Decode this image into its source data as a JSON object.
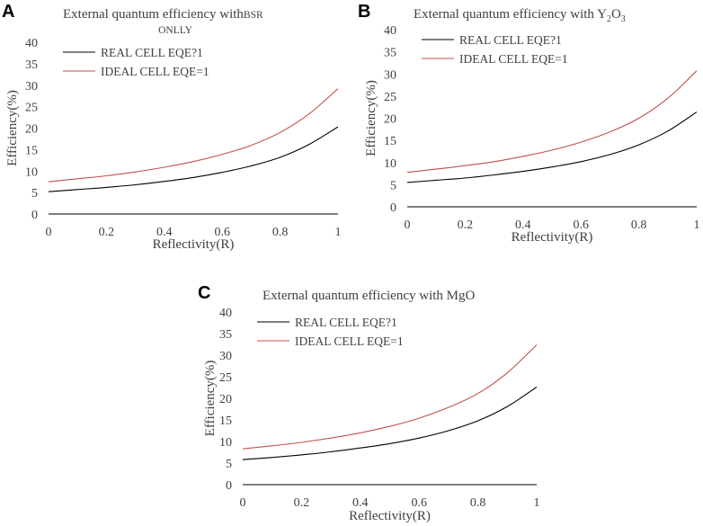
{
  "colors": {
    "real": "#000000",
    "ideal": "#c0504d",
    "text": "#404040"
  },
  "chart_data": [
    {
      "panel": "A",
      "type": "line",
      "title": "External quantum efficiency with BSR",
      "title_suffix": "ONLLY",
      "xlabel": "Reflectivity(R)",
      "ylabel": "Efficiency(%)",
      "xlim": [
        0,
        1
      ],
      "ylim": [
        0,
        40
      ],
      "x_ticks": [
        "0",
        "0.2",
        "0.4",
        "0.6",
        "0.8",
        "1"
      ],
      "y_ticks": [
        "0",
        "5",
        "10",
        "15",
        "20",
        "25",
        "30",
        "35",
        "40"
      ],
      "legend_position": "top-left",
      "x": [
        0,
        0.1,
        0.2,
        0.3,
        0.4,
        0.5,
        0.6,
        0.7,
        0.8,
        0.9,
        1.0
      ],
      "series": [
        {
          "name": "REAL CELL EQE?1",
          "color": "#000000",
          "values": [
            5.2,
            5.7,
            6.2,
            6.8,
            7.6,
            8.5,
            9.7,
            11.2,
            13.2,
            16.2,
            20.3
          ]
        },
        {
          "name": "IDEAL CELL EQE=1",
          "color": "#c0504d",
          "values": [
            7.5,
            8.2,
            8.9,
            9.8,
            10.9,
            12.2,
            13.9,
            16.0,
            19.0,
            23.3,
            29.2
          ]
        }
      ]
    },
    {
      "panel": "B",
      "type": "line",
      "title": "External quantum efficiency with Y",
      "title_sub1": "2",
      "title_mid": "O",
      "title_sub2": "3",
      "xlabel": "Reflectivity(R)",
      "ylabel": "Efficiency(%)",
      "xlim": [
        0,
        1
      ],
      "ylim": [
        0,
        40
      ],
      "x_ticks": [
        "0",
        "0.2",
        "0.4",
        "0.6",
        "0.8",
        "1"
      ],
      "y_ticks": [
        "0",
        "5",
        "10",
        "15",
        "20",
        "25",
        "30",
        "35",
        "40"
      ],
      "legend_position": "top-left",
      "x": [
        0,
        0.1,
        0.2,
        0.3,
        0.4,
        0.5,
        0.6,
        0.7,
        0.8,
        0.9,
        1.0
      ],
      "series": [
        {
          "name": "REAL CELL EQE?1",
          "color": "#000000",
          "values": [
            5.5,
            6.0,
            6.5,
            7.2,
            8.0,
            9.0,
            10.2,
            11.8,
            14.0,
            17.1,
            21.4
          ]
        },
        {
          "name": "IDEAL CELL EQE=1",
          "color": "#c0504d",
          "values": [
            7.8,
            8.5,
            9.3,
            10.2,
            11.4,
            12.8,
            14.6,
            16.9,
            20.0,
            24.5,
            30.7
          ]
        }
      ]
    },
    {
      "panel": "C",
      "type": "line",
      "title": "External quantum efficiency with MgO",
      "xlabel": "Reflectivity(R)",
      "ylabel": "Efficiency(%)",
      "xlim": [
        0,
        1
      ],
      "ylim": [
        0,
        40
      ],
      "x_ticks": [
        "0",
        "0.2",
        "0.4",
        "0.6",
        "0.8",
        "1"
      ],
      "y_ticks": [
        "0",
        "5",
        "10",
        "15",
        "20",
        "25",
        "30",
        "35",
        "40"
      ],
      "legend_position": "top-left",
      "x": [
        0,
        0.1,
        0.2,
        0.3,
        0.4,
        0.5,
        0.6,
        0.7,
        0.8,
        0.9,
        1.0
      ],
      "series": [
        {
          "name": "REAL CELL EQE?1",
          "color": "#000000",
          "values": [
            5.8,
            6.3,
            6.9,
            7.6,
            8.5,
            9.5,
            10.8,
            12.5,
            14.8,
            18.1,
            22.6
          ]
        },
        {
          "name": "IDEAL CELL EQE=1",
          "color": "#c0504d",
          "values": [
            8.3,
            9.0,
            9.8,
            10.8,
            12.0,
            13.5,
            15.4,
            17.9,
            21.1,
            25.9,
            32.4
          ]
        }
      ]
    }
  ]
}
